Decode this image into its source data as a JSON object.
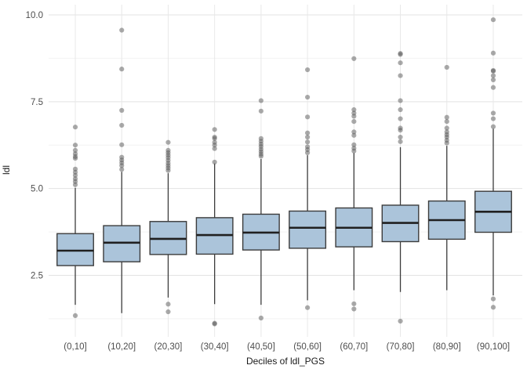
{
  "figure": {
    "colors": {
      "background": "#ffffff",
      "grid_major": "#e3e3e3",
      "grid_minor": "#f2f2f2",
      "grid_vertical": "#e8e8e8",
      "box_fill": "#abc4da",
      "box_border": "#3c3c3c",
      "median_line": "#202020",
      "whisker": "#3c3c3c",
      "outlier": "#565656",
      "tick_label": "#4d4d4d",
      "axis_title": "#1a1a1a"
    }
  },
  "chart_data": {
    "type": "boxplot",
    "title": "",
    "xlabel": "Deciles of ldl_PGS",
    "ylabel": "ldl",
    "ylim": [
      0.7,
      10.35
    ],
    "grid": "on",
    "legend": "none",
    "y_ticks": [
      {
        "label": "2.5",
        "value": 2.5
      },
      {
        "label": "5.0",
        "value": 5.0
      },
      {
        "label": "7.5",
        "value": 7.5
      },
      {
        "label": "10.0",
        "value": 10.0
      }
    ],
    "y_minor_ticks": [
      1.25,
      3.75,
      6.25,
      8.75
    ],
    "categories": [
      "(0,10]",
      "(10,20]",
      "(20,30]",
      "(30,40]",
      "(40,50]",
      "(50,60]",
      "(60,70]",
      "(70,80]",
      "(80,90]",
      "(90,100]"
    ],
    "boxes": [
      {
        "category": "(0,10]",
        "q1": 2.78,
        "median": 3.21,
        "q3": 3.7,
        "whisker_low": 1.65,
        "whisker_high": 5.02,
        "outliers_high": [
          6.77,
          6.25,
          6.1,
          6.0,
          5.92,
          5.87,
          5.56,
          5.47,
          5.38,
          5.28,
          5.2,
          5.11
        ],
        "outliers_low": [
          1.34
        ]
      },
      {
        "category": "(10,20]",
        "q1": 2.89,
        "median": 3.44,
        "q3": 3.93,
        "whisker_low": 1.41,
        "whisker_high": 5.48,
        "outliers_high": [
          9.56,
          8.44,
          7.25,
          6.82,
          6.26,
          5.9,
          5.82,
          5.74,
          5.66,
          5.55
        ],
        "outliers_low": []
      },
      {
        "category": "(20,30]",
        "q1": 3.1,
        "median": 3.55,
        "q3": 4.05,
        "whisker_low": 1.86,
        "whisker_high": 5.44,
        "outliers_high": [
          6.33,
          6.1,
          6.03,
          5.96,
          5.89,
          5.81,
          5.73,
          5.66,
          5.59,
          5.52
        ],
        "outliers_low": [
          1.67,
          1.45
        ]
      },
      {
        "category": "(30,40]",
        "q1": 3.11,
        "median": 3.66,
        "q3": 4.16,
        "whisker_low": 1.67,
        "whisker_high": 5.72,
        "outliers_high": [
          6.7,
          6.48,
          6.44,
          6.33,
          6.25,
          6.15,
          5.76
        ],
        "outliers_low": [
          1.12,
          1.1
        ]
      },
      {
        "category": "(40,50]",
        "q1": 3.23,
        "median": 3.73,
        "q3": 4.26,
        "whisker_low": 1.65,
        "whisker_high": 5.85,
        "outliers_high": [
          7.53,
          7.23,
          6.44,
          6.36,
          6.28,
          6.21,
          6.13,
          6.06,
          5.99,
          5.93
        ],
        "outliers_low": [
          1.27
        ]
      },
      {
        "category": "(50,60]",
        "q1": 3.28,
        "median": 3.87,
        "q3": 4.35,
        "whisker_low": 1.78,
        "whisker_high": 5.96,
        "outliers_high": [
          8.42,
          7.63,
          7.06,
          6.6,
          6.48,
          6.34,
          6.2,
          6.12,
          6.03
        ],
        "outliers_low": [
          1.57
        ]
      },
      {
        "category": "(60,70]",
        "q1": 3.32,
        "median": 3.87,
        "q3": 4.44,
        "whisker_low": 2.07,
        "whisker_high": 6.02,
        "outliers_high": [
          8.74,
          7.27,
          7.17,
          7.08,
          6.93,
          6.63,
          6.53,
          6.26,
          6.16,
          6.08
        ],
        "outliers_low": [
          1.68,
          1.53
        ]
      },
      {
        "category": "(70,80]",
        "q1": 3.47,
        "median": 4.01,
        "q3": 4.52,
        "whisker_low": 2.02,
        "whisker_high": 6.19,
        "outliers_high": [
          8.89,
          8.86,
          8.62,
          8.25,
          7.53,
          7.27,
          7.01,
          6.74,
          6.68,
          6.48,
          6.35
        ],
        "outliers_low": [
          1.18
        ]
      },
      {
        "category": "(80,90]",
        "q1": 3.54,
        "median": 4.09,
        "q3": 4.64,
        "whisker_low": 2.07,
        "whisker_high": 6.23,
        "outliers_high": [
          8.49,
          7.05,
          6.93,
          6.74,
          6.63,
          6.55,
          6.48,
          6.39,
          6.31
        ],
        "outliers_low": []
      },
      {
        "category": "(90,100]",
        "q1": 3.74,
        "median": 4.33,
        "q3": 4.92,
        "whisker_low": 1.92,
        "whisker_high": 6.72,
        "outliers_high": [
          9.86,
          8.9,
          8.4,
          8.38,
          8.25,
          8.13,
          7.91,
          7.17,
          7.01,
          6.78
        ],
        "outliers_low": [
          1.82,
          1.58
        ]
      }
    ]
  }
}
